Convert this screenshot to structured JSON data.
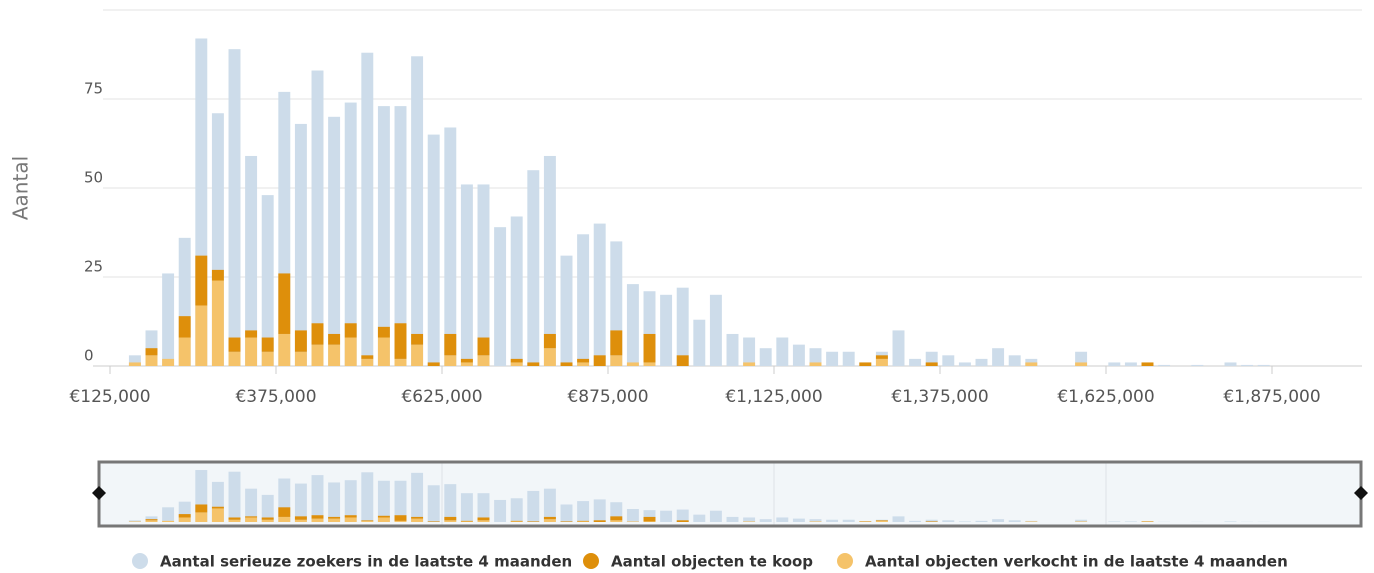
{
  "chart_data": {
    "type": "histogram",
    "y_label": "Aantal",
    "bins": [
      150000,
      175000,
      200000,
      225000,
      250000,
      275000,
      300000,
      325000,
      350000,
      375000,
      400000,
      425000,
      450000,
      475000,
      500000,
      525000,
      550000,
      575000,
      600000,
      625000,
      650000,
      675000,
      700000,
      725000,
      750000,
      775000,
      800000,
      825000,
      850000,
      875000,
      900000,
      925000,
      950000,
      975000,
      1000000,
      1025000,
      1050000,
      1075000,
      1100000,
      1125000,
      1150000,
      1175000,
      1200000,
      1225000,
      1250000,
      1275000,
      1300000,
      1325000,
      1350000,
      1375000,
      1400000,
      1425000,
      1450000,
      1475000,
      1500000,
      1525000,
      1550000,
      1575000,
      1600000,
      1625000,
      1650000,
      1675000,
      1700000,
      1725000,
      1750000,
      1775000,
      1800000,
      1825000,
      1850000,
      1875000
    ],
    "series": [
      {
        "name": "Aantal serieuze zoekers in de laatste 4 maanden",
        "color": "#cddcea",
        "values": [
          3,
          10,
          26,
          36,
          92,
          71,
          89,
          59,
          48,
          77,
          68,
          83,
          70,
          74,
          88,
          73,
          73,
          87,
          65,
          67,
          51,
          51,
          39,
          42,
          55,
          59,
          31,
          37,
          40,
          35,
          23,
          21,
          20,
          22,
          13,
          20,
          9,
          8,
          5,
          8,
          6,
          5,
          4,
          4,
          1,
          4,
          10,
          2,
          4,
          3,
          1,
          2,
          5,
          3,
          2,
          0,
          0,
          4,
          0,
          1,
          1,
          0,
          0.3,
          0,
          0.3,
          0,
          1,
          0.3,
          0.3
        ]
      },
      {
        "name": "Aantal objecten te koop",
        "color": "#de8f0b",
        "values": [
          0,
          2,
          0,
          6,
          14,
          3,
          4,
          2,
          4,
          17,
          6,
          6,
          3,
          4,
          1,
          3,
          10,
          3,
          1,
          6,
          1,
          5,
          0,
          1,
          1,
          4,
          1,
          1,
          3,
          7,
          0,
          8,
          0,
          3,
          0,
          0,
          0,
          0,
          0,
          0,
          0,
          0,
          0,
          0,
          1,
          1,
          0,
          0,
          1,
          0,
          0,
          0,
          0,
          0,
          0,
          0,
          0,
          0,
          0,
          0,
          0,
          1,
          0,
          0,
          0,
          0,
          0,
          0,
          0
        ]
      },
      {
        "name": "Aantal objecten verkocht in de laatste 4 maanden",
        "color": "#f5c36a",
        "values": [
          1,
          3,
          2,
          8,
          17,
          24,
          4,
          8,
          4,
          9,
          4,
          6,
          6,
          8,
          2,
          8,
          2,
          6,
          0,
          3,
          1,
          3,
          0,
          1,
          0,
          5,
          0,
          1,
          0,
          3,
          1,
          1,
          0,
          0,
          0,
          0,
          0,
          1,
          0,
          0,
          0,
          1,
          0,
          0,
          0,
          2,
          0,
          0,
          0,
          0,
          0,
          0,
          0,
          0,
          1,
          0,
          0,
          1,
          0,
          0,
          0,
          0,
          0,
          0,
          0,
          0,
          0,
          0,
          0
        ]
      }
    ],
    "xlim": [
      100000,
      2000000
    ],
    "xticks": [
      {
        "value": 125000,
        "label": "€125,000"
      },
      {
        "value": 375000,
        "label": "€375,000"
      },
      {
        "value": 625000,
        "label": "€625,000"
      },
      {
        "value": 875000,
        "label": "€875,000"
      },
      {
        "value": 1125000,
        "label": "€1,125,000"
      },
      {
        "value": 1375000,
        "label": "€1,375,000"
      },
      {
        "value": 1625000,
        "label": "€1,625,000"
      },
      {
        "value": 1875000,
        "label": "€1,875,000"
      }
    ],
    "ylim": [
      0,
      100
    ],
    "yticks": [
      0,
      25,
      50,
      75
    ],
    "grid": true
  }
}
